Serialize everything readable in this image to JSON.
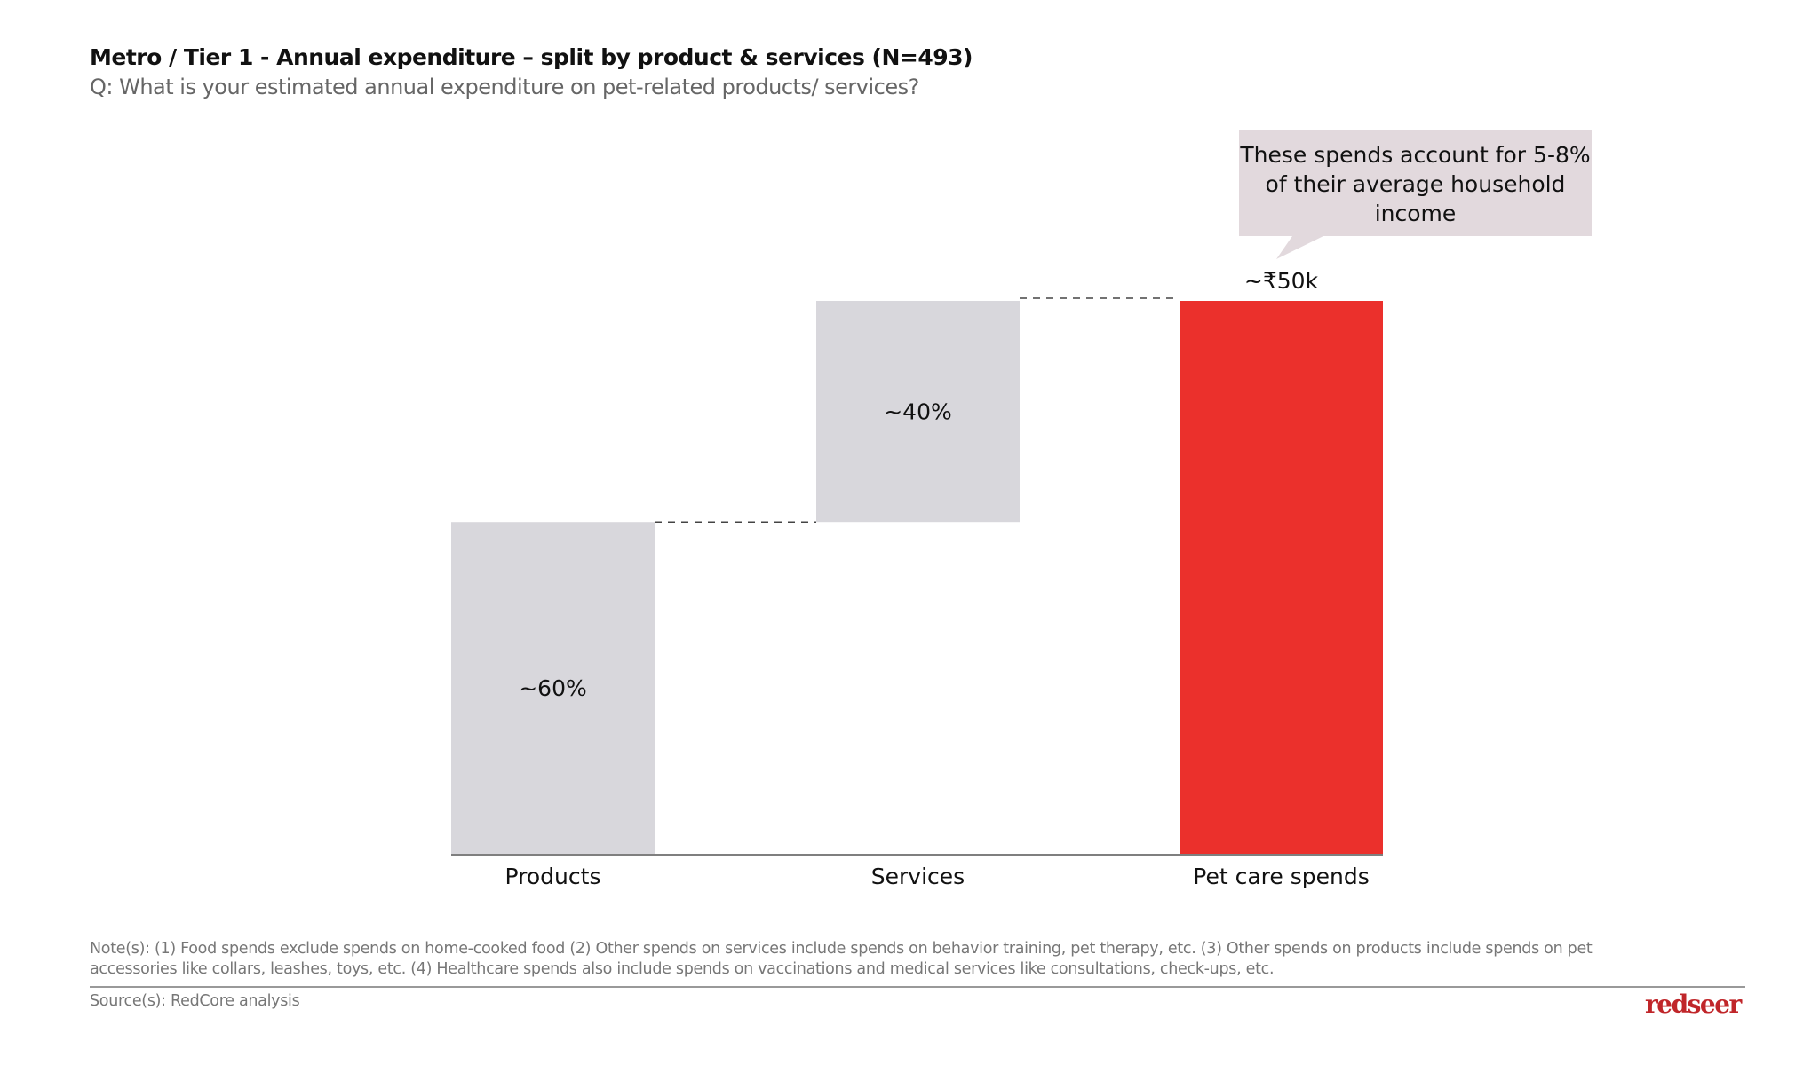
{
  "header": {
    "title": "Metro / Tier 1 - Annual expenditure – split by product & services (N=493)",
    "subtitle": "Q: What is your estimated annual expenditure on pet-related products/ services?"
  },
  "chart_data": {
    "type": "bar",
    "subtype": "waterfall",
    "categories": [
      "Products",
      "Services",
      "Pet care spends"
    ],
    "values": [
      60,
      40,
      100
    ],
    "data_labels": [
      "~60%",
      "~40%",
      "~₹50k"
    ],
    "unit": "% of total",
    "ylim": [
      0,
      100
    ],
    "grid": false,
    "colors": {
      "step": "#d8d7dc",
      "total": "#eb302c"
    },
    "connectors": "dashed",
    "annotation": "These spends account for 5-8% of their average household income",
    "annotation_color": "#e2d9dd"
  },
  "footer": {
    "notes": "Note(s): (1) Food spends exclude spends on home-cooked food (2) Other spends on services include spends on behavior training, pet therapy, etc. (3) Other spends on products include spends on pet accessories like collars, leashes, toys, etc. (4) Healthcare spends also include spends on vaccinations and medical services like consultations, check-ups, etc.",
    "source": "Source(s): RedCore analysis",
    "logo": "redseer"
  }
}
